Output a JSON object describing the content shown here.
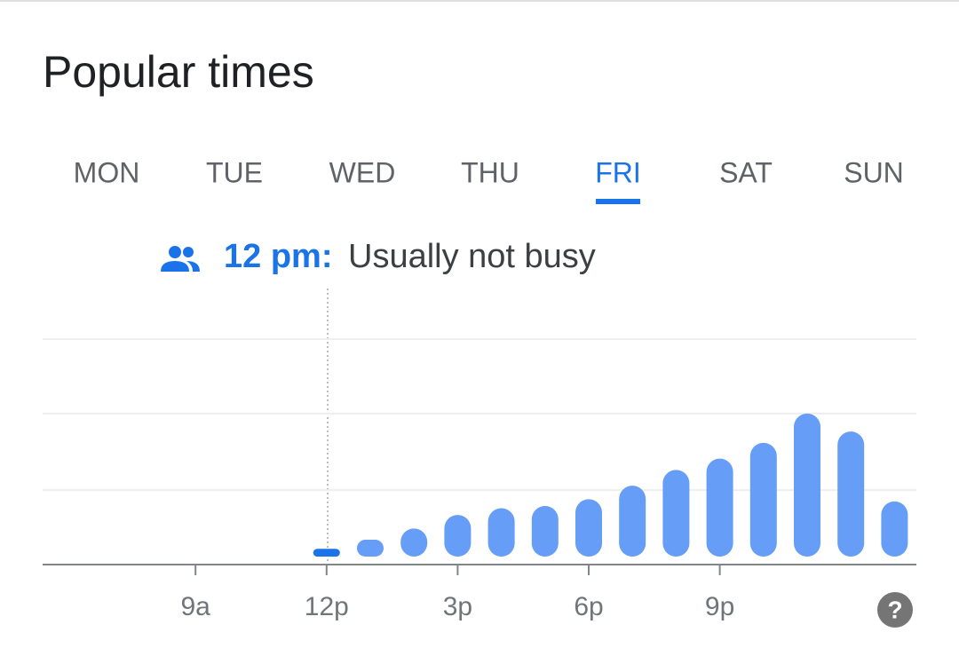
{
  "title": "Popular times",
  "tabs": [
    "MON",
    "TUE",
    "WED",
    "THU",
    "FRI",
    "SAT",
    "SUN"
  ],
  "selected_tab": 4,
  "status": {
    "time": "12 pm:",
    "text": "Usually not busy"
  },
  "help": "?",
  "chart_data": {
    "type": "bar",
    "categories": [
      null,
      null,
      null,
      "9a",
      null,
      null,
      "12p",
      null,
      null,
      "3p",
      null,
      null,
      "6p",
      null,
      null,
      "9p",
      null,
      null,
      null,
      null
    ],
    "values": [
      0,
      0,
      0,
      0,
      0,
      0,
      7,
      11,
      16,
      22,
      25,
      26,
      29,
      35,
      42,
      47,
      54,
      67,
      59,
      28
    ],
    "ylim": [
      0,
      100
    ],
    "yticks": [
      33,
      67,
      100
    ],
    "grid": true,
    "color": "#669df6",
    "highlight_color": "#1a73e8",
    "highlight_index": 6
  }
}
